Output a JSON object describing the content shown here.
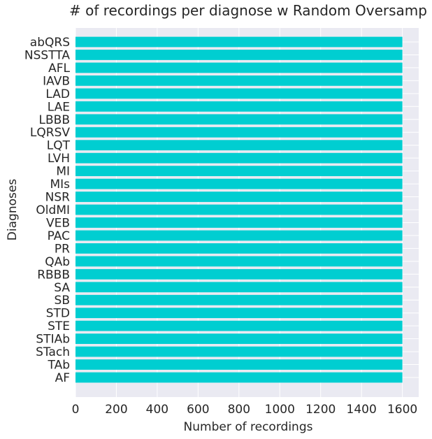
{
  "chart_data": {
    "type": "bar",
    "orientation": "horizontal",
    "title": "# of recordings per diagnose w Random Oversamp",
    "xlabel": "Number of recordings",
    "ylabel": "Diagnoses",
    "categories": [
      "abQRS",
      "NSSTTA",
      "AFL",
      "IAVB",
      "LAD",
      "LAE",
      "LBBB",
      "LQRSV",
      "LQT",
      "LVH",
      "MI",
      "MIs",
      "NSR",
      "OldMI",
      "VEB",
      "PAC",
      "PR",
      "QAb",
      "RBBB",
      "SA",
      "SB",
      "STD",
      "STE",
      "STIAb",
      "STach",
      "TAb",
      "AF"
    ],
    "values": [
      1600,
      1600,
      1600,
      1600,
      1600,
      1600,
      1600,
      1600,
      1600,
      1600,
      1600,
      1600,
      1600,
      1600,
      1600,
      1600,
      1600,
      1600,
      1600,
      1600,
      1600,
      1600,
      1600,
      1600,
      1600,
      1600,
      1600
    ],
    "xlim": [
      0,
      1680
    ],
    "xticks": [
      "0",
      "200",
      "400",
      "600",
      "800",
      "1000",
      "1200",
      "1400",
      "1600"
    ],
    "grid": true,
    "bar_color": "#00CED1",
    "background_color": "#EAEAF2"
  }
}
